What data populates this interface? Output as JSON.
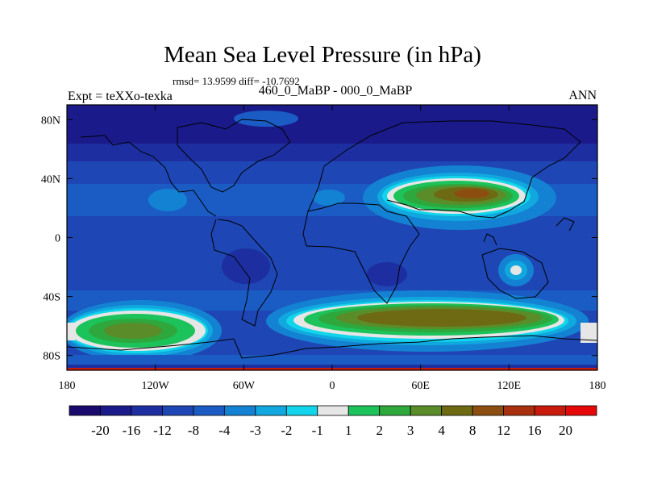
{
  "chart_data": {
    "type": "heatmap",
    "title": "Mean Sea Level Pressure (in hPa)",
    "stats": "rmsd= 13.9599 diff= -10.7692",
    "subtitle": "460_0_MaBP - 000_0_MaBP",
    "left_label": "Expt = teXXo-texka",
    "right_label": "ANN",
    "x_axis": {
      "range": [
        -180,
        180
      ],
      "ticks": [
        -180,
        -120,
        -60,
        0,
        60,
        120,
        180
      ],
      "tick_labels": [
        "180",
        "120W",
        "60W",
        "0",
        "60E",
        "120E",
        "180"
      ]
    },
    "y_axis": {
      "range": [
        -90,
        90
      ],
      "ticks": [
        80,
        40,
        0,
        -40,
        -80
      ],
      "tick_labels": [
        "80N",
        "40N",
        "0",
        "40S",
        "80S"
      ]
    },
    "colorbar": {
      "labels": [
        "-20",
        "-16",
        "-12",
        "-8",
        "-4",
        "-3",
        "-2",
        "-1",
        "1",
        "2",
        "3",
        "4",
        "8",
        "12",
        "16",
        "20"
      ],
      "colors": [
        "#1b0a6e",
        "#1a1a8a",
        "#1d2fa0",
        "#1e46b4",
        "#1a5cc4",
        "#1482d2",
        "#10a8de",
        "#12d4ea",
        "#e6e6e6",
        "#1cc25a",
        "#2ea83c",
        "#5a8c2a",
        "#6e6a14",
        "#8c4e10",
        "#a8300e",
        "#c81a0a",
        "#e60808"
      ]
    },
    "features": [
      {
        "name": "high pressure over Asia",
        "lon": 90,
        "lat": 30,
        "value": 16
      },
      {
        "name": "high pressure southern belt (Africa-Australia)",
        "lon": 60,
        "lat": -57,
        "value": 12
      },
      {
        "name": "high pressure southern Pacific",
        "lon": -135,
        "lat": -62,
        "value": 12
      },
      {
        "name": "low pressure northern cap",
        "lon": 0,
        "lat": 75,
        "value": -20
      }
    ]
  }
}
